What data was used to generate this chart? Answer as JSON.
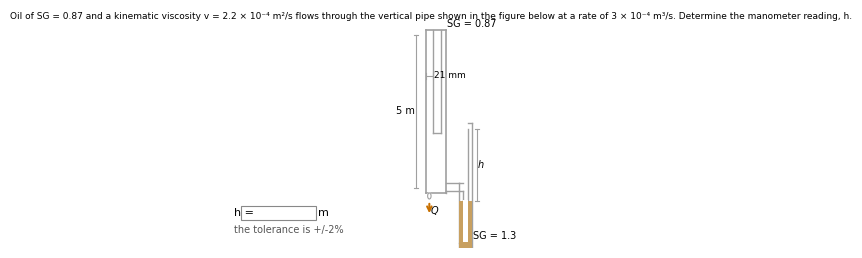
{
  "title": "Oil of SG = 0.87 and a kinematic viscosity v = 2.2 × 10⁻⁴ m²/s flows through the vertical pipe shown in the figure below at a rate of 3 × 10⁻⁴ m³/s. Determine the manometer reading, h.",
  "sg_oil": "SG = 0.87",
  "sg_manometer": "SG = 1.3",
  "dim_21mm": "21 mm",
  "dim_5m": "5 m",
  "label_h": "h =",
  "label_m": "m",
  "label_q": "Q",
  "tolerance": "the tolerance is +/-2%",
  "bg_color": "#ffffff",
  "manometer_fluid_color": "#c8a060",
  "pipe_line_color": "#a0a0a0",
  "text_color": "#000000",
  "arrow_color": "#c87000"
}
